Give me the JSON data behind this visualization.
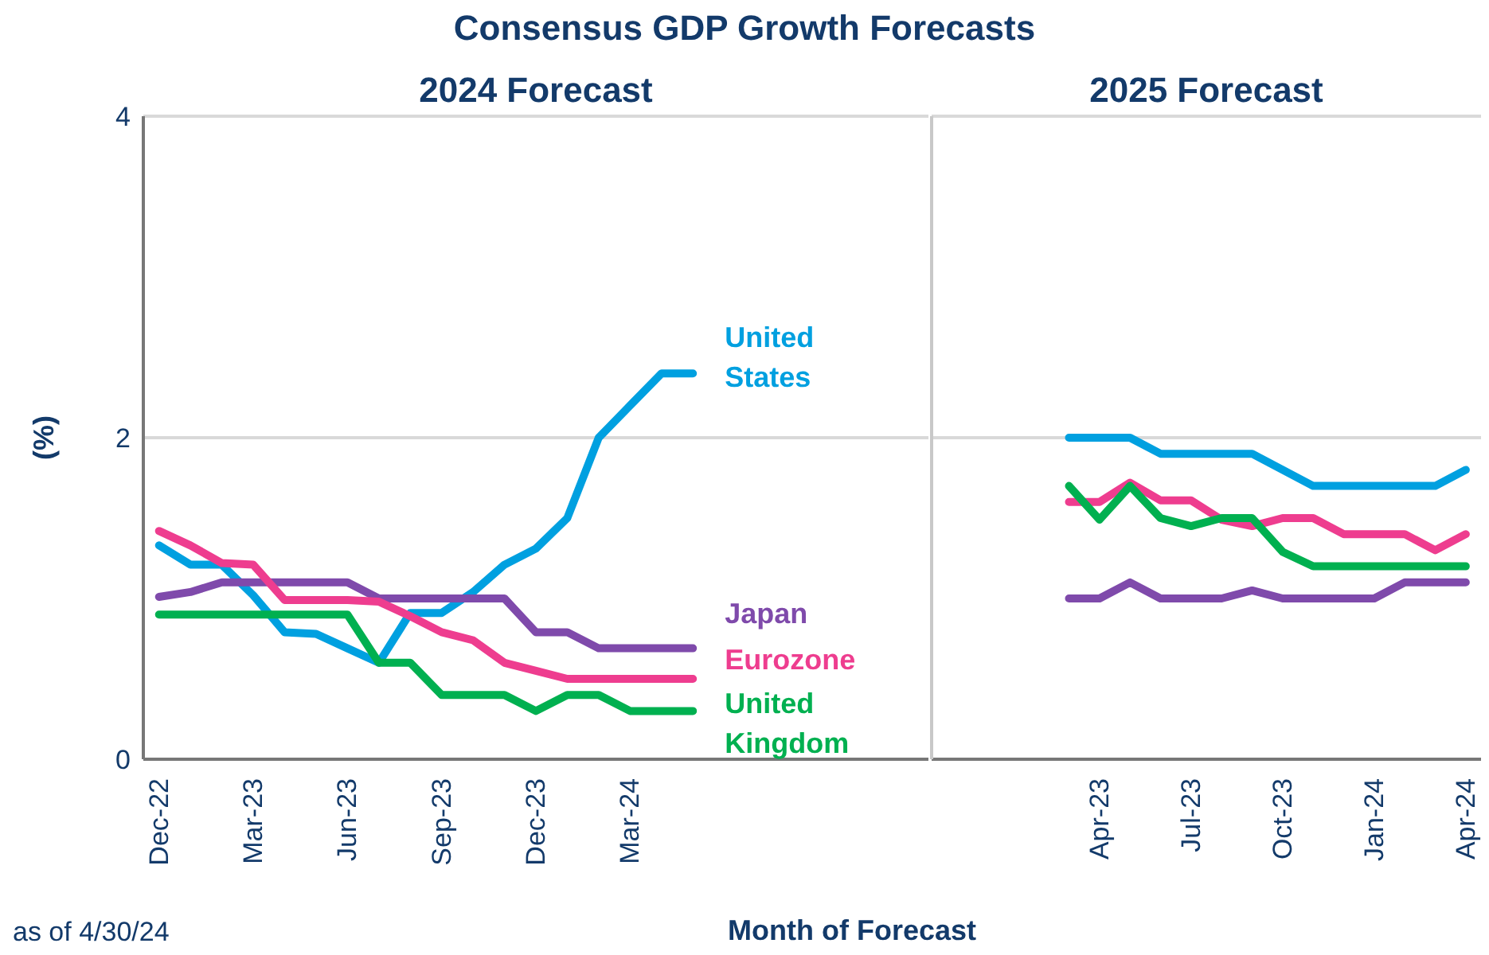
{
  "chart_data": [
    {
      "type": "line",
      "title": "Consensus GDP Growth Forecasts",
      "subtitle": "2024 Forecast",
      "xlabel": "Month of Forecast",
      "ylabel": "(%)",
      "annotations": [
        "as of 4/30/24"
      ],
      "categories": [
        "Dec-22",
        null,
        null,
        "Mar-23",
        null,
        null,
        "Jun-23",
        null,
        null,
        "Sep-23",
        null,
        null,
        "Dec-23",
        null,
        null,
        "Mar-24",
        null,
        null,
        null,
        null,
        null,
        null,
        null,
        null,
        null
      ],
      "ylim": [
        0,
        4
      ],
      "yticks": [
        0,
        2,
        4
      ],
      "grid": "y",
      "marker": "none",
      "line_style": "solid",
      "series": [
        {
          "name": "United States",
          "color": "#00a0e0",
          "values": [
            1.33,
            1.21,
            1.21,
            1.02,
            0.79,
            0.78,
            0.69,
            0.6,
            0.91,
            0.91,
            1.04,
            1.21,
            1.31,
            1.5,
            2.0,
            2.2,
            2.4,
            2.4,
            null,
            null,
            null,
            null,
            null,
            null,
            null
          ]
        },
        {
          "name": "Japan",
          "color": "#7f4aab",
          "values": [
            1.01,
            1.04,
            1.1,
            1.1,
            1.1,
            1.1,
            1.1,
            1.0,
            1.0,
            1.0,
            1.0,
            1.0,
            0.79,
            0.79,
            0.69,
            0.69,
            0.69,
            0.69,
            null,
            null,
            null,
            null,
            null,
            null,
            null
          ]
        },
        {
          "name": "Eurozone",
          "color": "#ee3d8f",
          "values": [
            1.42,
            1.33,
            1.22,
            1.21,
            0.99,
            0.99,
            0.99,
            0.98,
            0.89,
            0.79,
            0.74,
            0.6,
            0.55,
            0.5,
            0.5,
            0.5,
            0.5,
            0.5,
            null,
            null,
            null,
            null,
            null,
            null,
            null
          ]
        },
        {
          "name": "United Kingdom",
          "color": "#00b050",
          "values": [
            0.9,
            0.9,
            0.9,
            0.9,
            0.9,
            0.9,
            0.9,
            0.6,
            0.6,
            0.4,
            0.4,
            0.4,
            0.3,
            0.4,
            0.4,
            0.3,
            0.3,
            0.3,
            null,
            null,
            null,
            null,
            null,
            null,
            null
          ]
        }
      ]
    },
    {
      "type": "line",
      "title": "2025  Forecast",
      "categories": [
        null,
        null,
        null,
        null,
        null,
        "Apr-23",
        null,
        null,
        "Jul-23",
        null,
        null,
        "Oct-23",
        null,
        null,
        "Jan-24",
        null,
        null,
        "Apr-24"
      ],
      "ylim": [
        0,
        4
      ],
      "yticks": [
        0,
        2,
        4
      ],
      "tick_labels": "x",
      "grid": "y",
      "marker": "none",
      "line_style": "solid",
      "series": [
        {
          "color": "#00a0e0",
          "values": [
            null,
            null,
            null,
            null,
            2.0,
            2.0,
            2.0,
            1.9,
            1.9,
            1.9,
            1.9,
            1.8,
            1.7,
            1.7,
            1.7,
            1.7,
            1.7,
            1.8
          ]
        },
        {
          "color": "#7f4aab",
          "values": [
            null,
            null,
            null,
            null,
            1.0,
            1.0,
            1.1,
            1.0,
            1.0,
            1.0,
            1.05,
            1.0,
            1.0,
            1.0,
            1.0,
            1.1,
            1.1,
            1.1
          ]
        },
        {
          "color": "#ee3d8f",
          "values": [
            null,
            null,
            null,
            null,
            1.6,
            1.6,
            1.72,
            1.61,
            1.61,
            1.49,
            1.45,
            1.5,
            1.5,
            1.4,
            1.4,
            1.4,
            1.3,
            1.4
          ]
        },
        {
          "color": "#00b050",
          "values": [
            null,
            null,
            null,
            null,
            1.7,
            1.49,
            1.7,
            1.5,
            1.45,
            1.5,
            1.5,
            1.29,
            1.2,
            1.2,
            1.2,
            1.2,
            1.2,
            1.2
          ]
        }
      ]
    }
  ]
}
